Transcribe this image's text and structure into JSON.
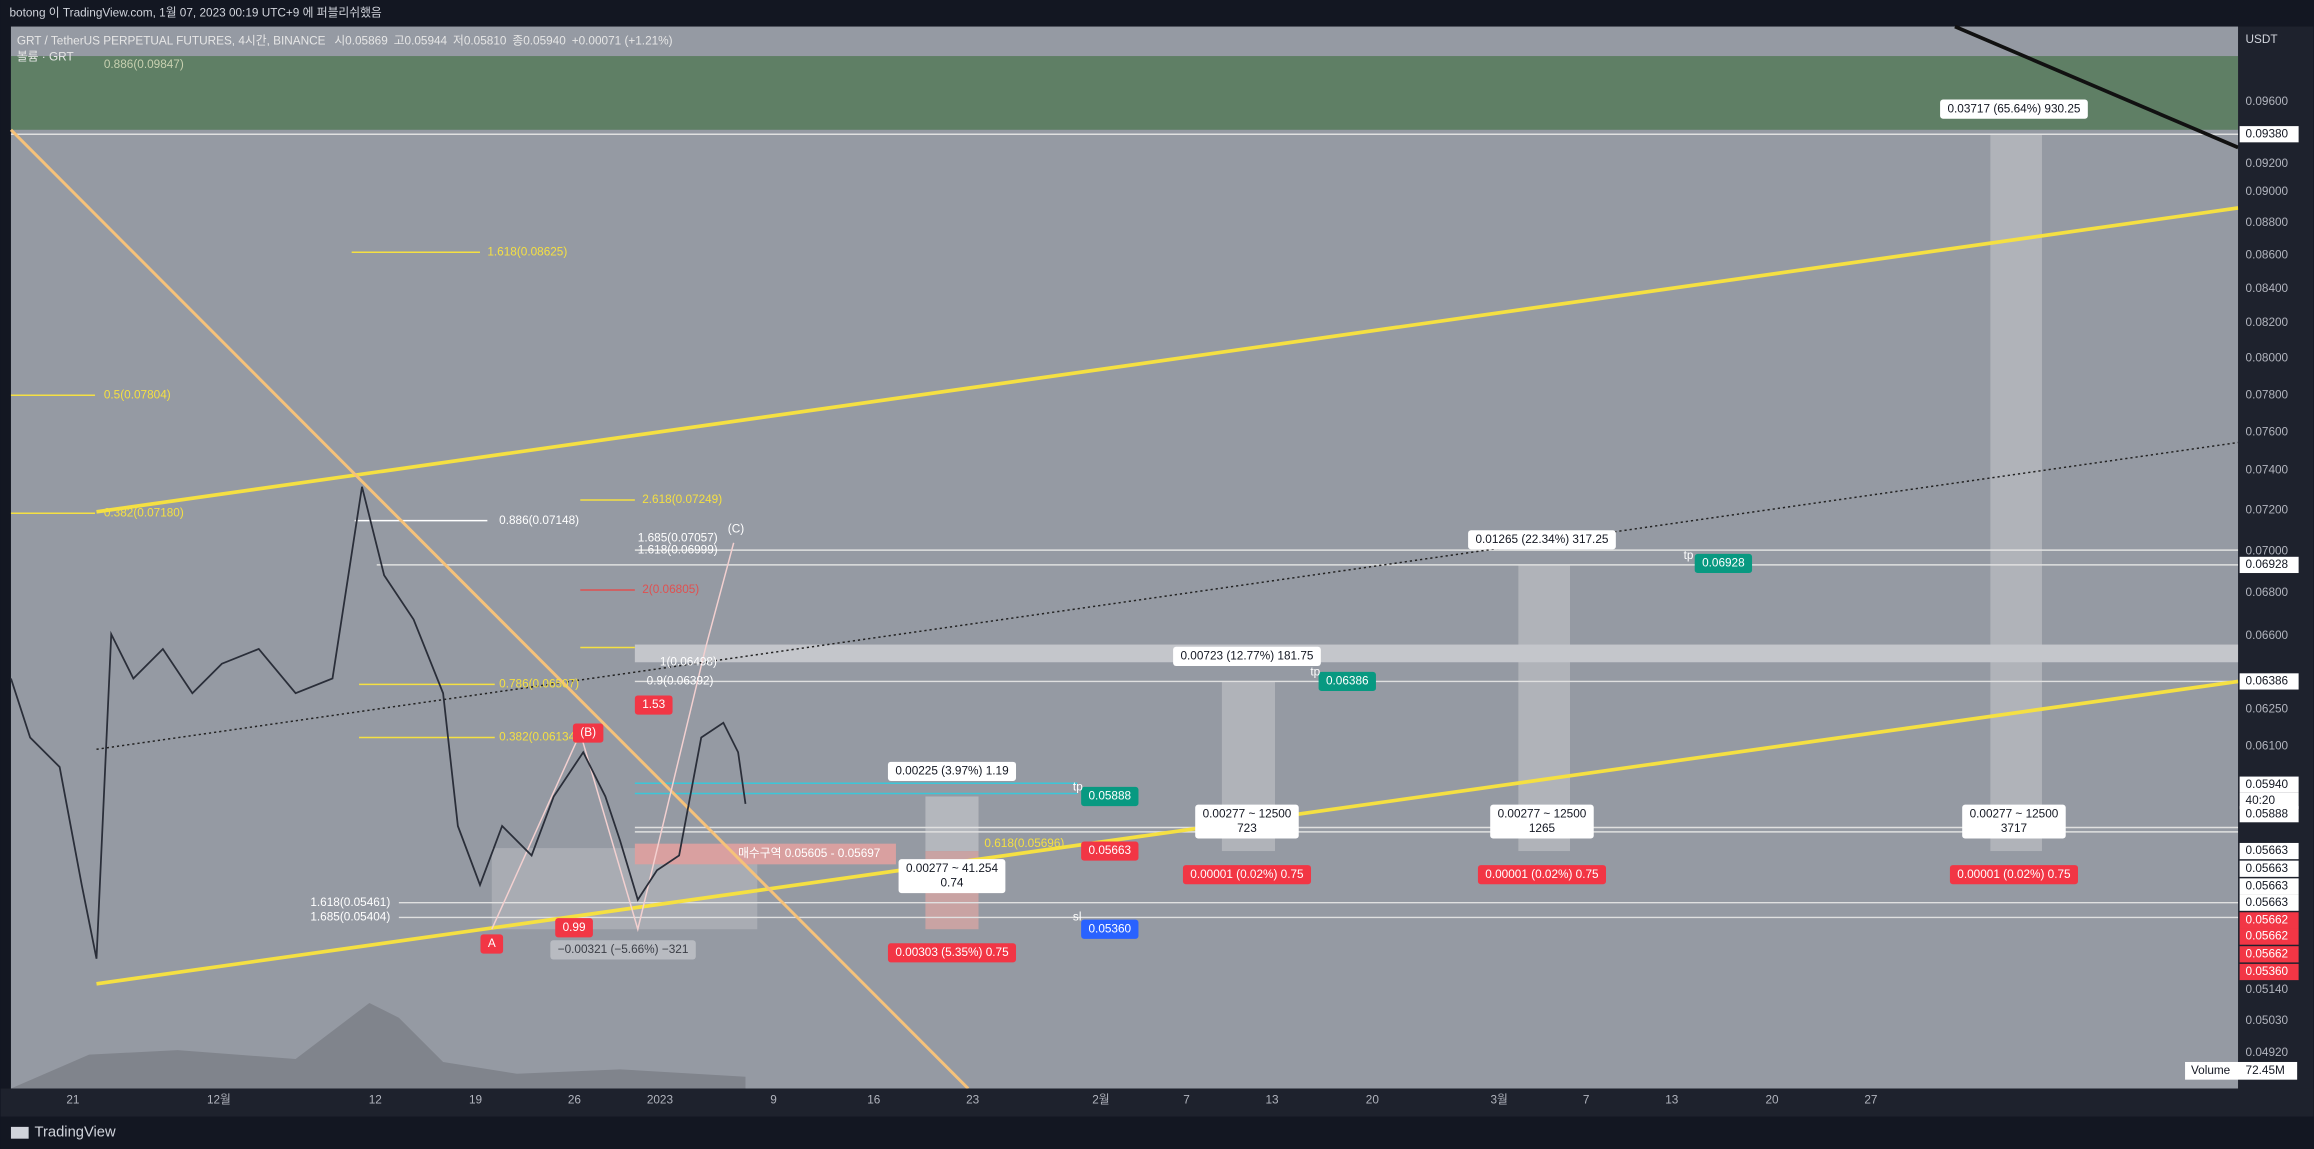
{
  "header": {
    "title": "botong 이 TradingView.com, 1월 07, 2023 00:19 UTC+9 에 퍼블리쉬했음",
    "symbol": "GRT / TetherUS PERPETUAL FUTURES, 4시간, BINANCE",
    "ohlc": [
      "시0.05869",
      "고0.05944",
      "저0.05810",
      "종0.05940",
      "+0.00071 (+1.21%)"
    ],
    "indicator": "볼륨 · GRT"
  },
  "price_axis": {
    "unit": "USDT",
    "labels": [
      "0.09600",
      "0.09380",
      "0.09200",
      "0.09000",
      "0.08800",
      "0.08600",
      "0.08400",
      "0.08200",
      "0.08000",
      "0.07800",
      "0.07600",
      "0.07400",
      "0.07200",
      "0.07000",
      "0.06928",
      "0.06800",
      "0.06600",
      "0.06386",
      "0.06250",
      "0.06100",
      "0.05940",
      "40:20",
      "0.05888",
      "0.05663",
      "0.05663",
      "0.05663",
      "0.05663",
      "0.05662",
      "0.05662",
      "0.05662",
      "0.05360",
      "0.05140",
      "0.05030",
      "0.04920"
    ]
  },
  "time_axis": {
    "labels": [
      "21",
      "12월",
      "12",
      "19",
      "26",
      "2023",
      "9",
      "16",
      "23",
      "2월",
      "7",
      "13",
      "20",
      "3월",
      "7",
      "13",
      "20",
      "27"
    ]
  },
  "annotations": [
    {
      "text": "0.886(0.09847)"
    },
    {
      "text": "1.618(0.08625)"
    },
    {
      "text": "0.5(0.07804)"
    },
    {
      "text": "0.382(0.07180)"
    },
    {
      "text": "2.618(0.07249)"
    },
    {
      "text": "0.886(0.07148)"
    },
    {
      "text": "1.685(0.07057)"
    },
    {
      "text": "1.618(0.06999)"
    },
    {
      "text": "(C)"
    },
    {
      "text": "2(0.06805)"
    },
    {
      "text": "0.786(0.06507)"
    },
    {
      "text": "0.382(0.06134)"
    },
    {
      "text": "1(0.06498)"
    },
    {
      "text": "0.9(0.06392)"
    },
    {
      "text": "1.53"
    },
    {
      "text": "(B)"
    },
    {
      "text": "1.618(0.05461)"
    },
    {
      "text": "1.685(0.05404)"
    },
    {
      "text": "A"
    },
    {
      "text": "0.99"
    },
    {
      "text": "−0.00321 (−5.66%) −321"
    },
    {
      "text": "매수구역 0.05605 - 0.05697"
    },
    {
      "text": "0.618(0.05696)"
    },
    {
      "text": "0.00225 (3.97%) 1.19"
    },
    {
      "lines": [
        "0.00277 ~ 41.254",
        "0.74"
      ]
    },
    {
      "text": "0.00303 (5.35%) 0.75"
    },
    {
      "text": "0.05888"
    },
    {
      "text": "0.05663"
    },
    {
      "text": "0.05360"
    },
    {
      "text": "0.00723 (12.77%) 181.75"
    },
    {
      "text": "0.06386"
    },
    {
      "lines": [
        "0.00277 ~ 12500",
        "723"
      ]
    },
    {
      "text": "0.00001 (0.02%) 0.75"
    },
    {
      "text": "0.01265 (22.34%) 317.25"
    },
    {
      "text": "0.06928"
    },
    {
      "lines": [
        "0.00277 ~ 12500",
        "1265"
      ]
    },
    {
      "text": "0.00001 (0.02%) 0.75"
    },
    {
      "text": "0.03717 (65.64%) 930.25"
    },
    {
      "lines": [
        "0.00277 ~ 12500",
        "3717"
      ]
    },
    {
      "text": "0.00001 (0.02%) 0.75"
    },
    {
      "text": "tp"
    },
    {
      "text": "tp"
    },
    {
      "text": "tp"
    },
    {
      "text": "sl"
    }
  ],
  "volume": {
    "label": "Volume",
    "value": "72.45M"
  },
  "footer": {
    "brand": "TradingView"
  }
}
